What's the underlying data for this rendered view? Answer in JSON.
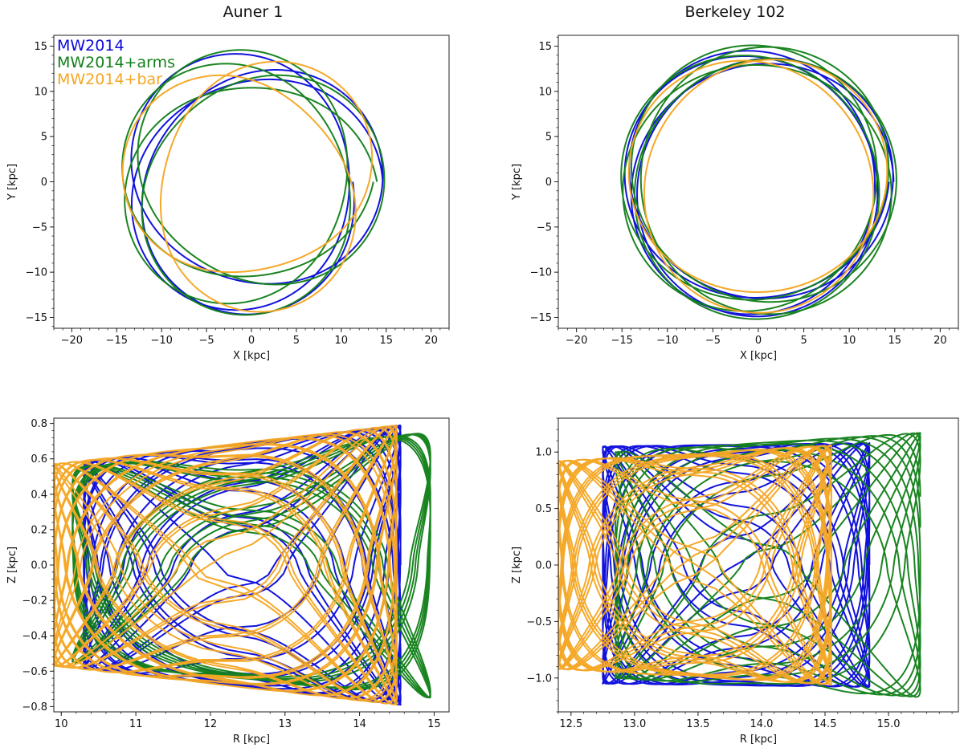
{
  "titles": [
    "Auner 1",
    "Berkeley 102"
  ],
  "legend": {
    "items": [
      {
        "label": "MW2014",
        "color": "#0a0adc"
      },
      {
        "label": "MW2014+arms",
        "color": "#13801a"
      },
      {
        "label": "MW2014+bar",
        "color": "#f5a623"
      }
    ]
  },
  "chart_data": [
    {
      "type": "line",
      "panel": "Auner 1 — XY orbit",
      "title": "Auner 1",
      "xlabel": "X [kpc]",
      "ylabel": "Y [kpc]",
      "xlim": [
        -22,
        22
      ],
      "ylim": [
        -16.2,
        16.2
      ],
      "xticks": [
        -20,
        -15,
        -10,
        -5,
        0,
        5,
        10,
        15,
        20
      ],
      "yticks": [
        -15,
        -10,
        -5,
        0,
        5,
        10,
        15
      ],
      "xtick_labels": [
        "−20",
        "−15",
        "−10",
        "−5",
        "0",
        "5",
        "10",
        "15",
        "20"
      ],
      "ytick_labels": [
        "−15",
        "−10",
        "−5",
        "0",
        "5",
        "10",
        "15"
      ],
      "series": [
        {
          "name": "MW2014",
          "color": "#0a0adc",
          "orbit": "xy",
          "r_min": 10.9,
          "r_max": 14.7,
          "n_radial": 1.45,
          "turns": 3,
          "phase": 0.3
        },
        {
          "name": "MW2014+arms",
          "color": "#13801a",
          "orbit": "xy",
          "r_min": 10.4,
          "r_max": 14.8,
          "n_radial": 1.42,
          "turns": 4,
          "phase": 0.9
        },
        {
          "name": "MW2014+bar",
          "color": "#f5a623",
          "orbit": "xy",
          "r_min": 9.7,
          "r_max": 14.5,
          "n_radial": 1.5,
          "turns": 8,
          "phase": 2.0
        }
      ]
    },
    {
      "type": "line",
      "panel": "Berkeley 102 — XY orbit",
      "title": "Berkeley 102",
      "xlabel": "X [kpc]",
      "ylabel": "Y [kpc]",
      "xlim": [
        -22,
        22
      ],
      "ylim": [
        -16.2,
        16.2
      ],
      "xticks": [
        -20,
        -15,
        -10,
        -5,
        0,
        5,
        10,
        15,
        20
      ],
      "yticks": [
        -15,
        -10,
        -5,
        0,
        5,
        10,
        15
      ],
      "xtick_labels": [
        "−20",
        "−15",
        "−10",
        "−5",
        "0",
        "5",
        "10",
        "15",
        "20"
      ],
      "ytick_labels": [
        "−15",
        "−10",
        "−5",
        "0",
        "5",
        "10",
        "15"
      ],
      "series": [
        {
          "name": "MW2014",
          "color": "#0a0adc",
          "orbit": "xy",
          "r_min": 12.8,
          "r_max": 14.9,
          "n_radial": 1.45,
          "turns": 4,
          "phase": 0.2
        },
        {
          "name": "MW2014+arms",
          "color": "#13801a",
          "orbit": "xy",
          "r_min": 12.9,
          "r_max": 15.2,
          "n_radial": 1.4,
          "turns": 5,
          "phase": 1.1
        },
        {
          "name": "MW2014+bar",
          "color": "#f5a623",
          "orbit": "xy",
          "r_min": 12.2,
          "r_max": 14.5,
          "n_radial": 1.5,
          "turns": 7,
          "phase": 2.3
        }
      ]
    },
    {
      "type": "line",
      "panel": "Auner 1 — meridional orbit",
      "xlabel": "R [kpc]",
      "ylabel": "Z [kpc]",
      "xlim": [
        9.9,
        15.2
      ],
      "ylim": [
        -0.83,
        0.83
      ],
      "xticks": [
        10,
        11,
        12,
        13,
        14,
        15
      ],
      "yticks": [
        -0.8,
        -0.6,
        -0.4,
        -0.2,
        0.0,
        0.2,
        0.4,
        0.6,
        0.8
      ],
      "xtick_labels": [
        "10",
        "11",
        "12",
        "13",
        "14",
        "15"
      ],
      "ytick_labels": [
        "−0.8",
        "−0.6",
        "−0.4",
        "−0.2",
        "0.0",
        "0.2",
        "0.4",
        "0.6",
        "0.8"
      ],
      "series": [
        {
          "name": "MW2014",
          "color": "#0a0adc",
          "orbit": "rz",
          "R_range": [
            10.3,
            14.55
          ],
          "Z_amp_inner": 0.58,
          "Z_amp_outer": 0.79,
          "freq_R": 1.0,
          "freq_Z": 1.37,
          "cycles": 16
        },
        {
          "name": "MW2014+arms",
          "color": "#13801a",
          "orbit": "rz",
          "R_range": [
            10.15,
            14.95
          ],
          "Z_amp_inner": 0.55,
          "Z_amp_outer": 0.75,
          "freq_R": 1.0,
          "freq_Z": 1.33,
          "cycles": 12
        },
        {
          "name": "MW2014+bar",
          "color": "#f5a623",
          "orbit": "rz",
          "R_range": [
            9.9,
            14.5
          ],
          "Z_amp_inner": 0.57,
          "Z_amp_outer": 0.79,
          "freq_R": 1.0,
          "freq_Z": 1.41,
          "cycles": 22
        }
      ]
    },
    {
      "type": "line",
      "panel": "Berkeley 102 — meridional orbit",
      "xlabel": "R [kpc]",
      "ylabel": "Z [kpc]",
      "xlim": [
        12.4,
        15.55
      ],
      "ylim": [
        -1.3,
        1.3
      ],
      "xticks": [
        12.5,
        13.0,
        13.5,
        14.0,
        14.5,
        15.0
      ],
      "yticks": [
        -1.0,
        -0.5,
        0.0,
        0.5,
        1.0
      ],
      "xtick_labels": [
        "12.5",
        "13.0",
        "13.5",
        "14.0",
        "14.5",
        "15.0"
      ],
      "ytick_labels": [
        "−1.0",
        "−0.5",
        "0.0",
        "0.5",
        "1.0"
      ],
      "series": [
        {
          "name": "MW2014",
          "color": "#0a0adc",
          "orbit": "rz",
          "R_range": [
            12.75,
            14.85
          ],
          "Z_amp_inner": 1.05,
          "Z_amp_outer": 1.08,
          "freq_R": 1.0,
          "freq_Z": 1.36,
          "cycles": 14
        },
        {
          "name": "MW2014+arms",
          "color": "#13801a",
          "orbit": "rz",
          "R_range": [
            12.85,
            15.25
          ],
          "Z_amp_inner": 1.0,
          "Z_amp_outer": 1.17,
          "freq_R": 1.0,
          "freq_Z": 1.31,
          "cycles": 11
        },
        {
          "name": "MW2014+bar",
          "color": "#f5a623",
          "orbit": "rz",
          "R_range": [
            12.4,
            14.55
          ],
          "Z_amp_inner": 0.92,
          "Z_amp_outer": 1.06,
          "freq_R": 1.0,
          "freq_Z": 1.43,
          "cycles": 20
        }
      ]
    }
  ]
}
